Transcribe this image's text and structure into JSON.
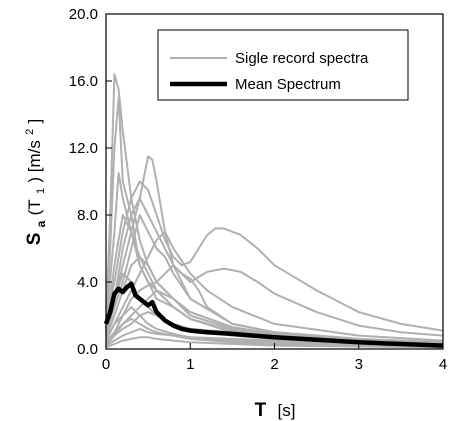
{
  "chart_data": {
    "type": "line",
    "title": "",
    "xlabel": {
      "main": "T",
      "unit": "[s]"
    },
    "ylabel": {
      "s": "S",
      "a": "a",
      "open": "(T",
      "one": "1",
      "close": ") [m/s",
      "sq": "2",
      "end": "]"
    },
    "xlim": [
      0,
      4
    ],
    "ylim": [
      0,
      20
    ],
    "x_ticks": [
      0,
      1,
      2,
      3,
      4
    ],
    "x_tick_labels": [
      "0",
      "1",
      "2",
      "3",
      "4"
    ],
    "y_ticks": [
      0,
      4,
      8,
      12,
      16,
      20
    ],
    "y_tick_labels": [
      "0.0",
      "4.0",
      "8.0",
      "12.0",
      "16.0",
      "20.0"
    ],
    "grid": false,
    "legend_position": "top-right",
    "legend": [
      {
        "label": "Sigle record spectra",
        "color": "#b0b0b0"
      },
      {
        "label": "Mean Spectrum",
        "color": "#000000"
      }
    ],
    "colors": {
      "record": "#b0b0b0",
      "mean": "#000000"
    },
    "series": [
      {
        "group": "record",
        "x": [
          0,
          0.05,
          0.1,
          0.15,
          0.2,
          0.3,
          0.4,
          0.5,
          0.6,
          0.8,
          1.0,
          1.5,
          2.0,
          3.0,
          4.0
        ],
        "y": [
          1.5,
          8.0,
          16.4,
          15.5,
          13.0,
          9.0,
          6.5,
          5.0,
          4.0,
          3.0,
          2.2,
          1.3,
          0.9,
          0.5,
          0.3
        ]
      },
      {
        "group": "record",
        "x": [
          0,
          0.05,
          0.1,
          0.15,
          0.2,
          0.3,
          0.4,
          0.5,
          0.6,
          0.8,
          1.0,
          1.5,
          2.0,
          3.0,
          4.0
        ],
        "y": [
          1.2,
          6.0,
          12.0,
          15.0,
          10.0,
          8.0,
          5.0,
          4.0,
          3.0,
          2.5,
          1.8,
          1.0,
          0.7,
          0.4,
          0.2
        ]
      },
      {
        "group": "record",
        "x": [
          0,
          0.1,
          0.2,
          0.3,
          0.4,
          0.5,
          0.55,
          0.6,
          0.7,
          0.8,
          1.0,
          1.5,
          2.0,
          3.0,
          4.0
        ],
        "y": [
          1.0,
          3.0,
          5.0,
          7.0,
          9.0,
          11.5,
          11.3,
          10.0,
          7.0,
          5.0,
          3.0,
          1.5,
          1.0,
          0.5,
          0.3
        ]
      },
      {
        "group": "record",
        "x": [
          0,
          0.1,
          0.2,
          0.3,
          0.4,
          0.5,
          0.6,
          0.7,
          0.8,
          0.9,
          1.0,
          1.1,
          1.2,
          1.3,
          1.4,
          1.6,
          1.8,
          2.0,
          2.5,
          3.0,
          3.5,
          4.0
        ],
        "y": [
          1.5,
          4.0,
          7.0,
          9.0,
          10.0,
          9.5,
          8.0,
          6.5,
          5.5,
          5.0,
          5.2,
          6.0,
          6.8,
          7.2,
          7.2,
          6.8,
          6.0,
          5.0,
          3.5,
          2.2,
          1.5,
          1.1
        ]
      },
      {
        "group": "record",
        "x": [
          0,
          0.1,
          0.2,
          0.3,
          0.4,
          0.5,
          0.6,
          0.8,
          1.0,
          1.2,
          1.4,
          1.6,
          1.8,
          2.0,
          2.5,
          3.0,
          3.5,
          4.0
        ],
        "y": [
          1.0,
          3.0,
          6.0,
          8.0,
          9.0,
          8.0,
          7.0,
          5.0,
          4.0,
          4.6,
          4.8,
          4.6,
          4.0,
          3.3,
          2.2,
          1.4,
          1.0,
          0.8
        ]
      },
      {
        "group": "record",
        "x": [
          0,
          0.1,
          0.15,
          0.2,
          0.3,
          0.4,
          0.5,
          0.6,
          0.8,
          1.0,
          1.5,
          2.0,
          3.0,
          4.0
        ],
        "y": [
          1.3,
          7.0,
          10.5,
          9.0,
          7.0,
          5.5,
          4.5,
          3.5,
          2.5,
          1.8,
          1.1,
          0.8,
          0.5,
          0.3
        ]
      },
      {
        "group": "record",
        "x": [
          0,
          0.1,
          0.2,
          0.3,
          0.4,
          0.5,
          0.6,
          0.7,
          0.8,
          1.0,
          1.5,
          2.0,
          3.0,
          4.0
        ],
        "y": [
          0.8,
          2.5,
          4.0,
          6.0,
          8.0,
          7.0,
          6.0,
          5.5,
          4.5,
          3.0,
          1.5,
          1.0,
          0.6,
          0.4
        ]
      },
      {
        "group": "record",
        "x": [
          0,
          0.1,
          0.2,
          0.3,
          0.4,
          0.5,
          0.6,
          0.8,
          1.0,
          1.5,
          2.0,
          3.0,
          4.0
        ],
        "y": [
          1.0,
          5.0,
          8.0,
          7.0,
          5.0,
          4.0,
          3.5,
          2.5,
          1.8,
          1.0,
          0.7,
          0.4,
          0.2
        ]
      },
      {
        "group": "record",
        "x": [
          0,
          0.1,
          0.2,
          0.3,
          0.4,
          0.5,
          0.6,
          0.7,
          0.8,
          1.0,
          1.2,
          1.5,
          2.0,
          3.0,
          4.0
        ],
        "y": [
          0.5,
          1.5,
          2.5,
          3.5,
          4.5,
          5.5,
          6.5,
          7.0,
          6.0,
          4.5,
          3.5,
          2.5,
          1.5,
          0.8,
          0.5
        ]
      },
      {
        "group": "record",
        "x": [
          0,
          0.1,
          0.2,
          0.3,
          0.4,
          0.5,
          0.6,
          0.8,
          1.0,
          1.5,
          2.0,
          3.0,
          4.0
        ],
        "y": [
          0.6,
          2.0,
          3.5,
          5.0,
          5.5,
          5.0,
          4.0,
          3.0,
          2.0,
          1.2,
          0.8,
          0.5,
          0.3
        ]
      },
      {
        "group": "record",
        "x": [
          0,
          0.1,
          0.2,
          0.3,
          0.4,
          0.5,
          0.6,
          0.7,
          0.8,
          0.9,
          1.0,
          1.1,
          1.2,
          1.5,
          2.0,
          3.0,
          4.0
        ],
        "y": [
          0.5,
          1.5,
          2.0,
          3.0,
          3.5,
          3.8,
          4.0,
          4.5,
          5.0,
          4.5,
          4.2,
          3.5,
          2.5,
          1.5,
          1.0,
          0.6,
          0.4
        ]
      },
      {
        "group": "record",
        "x": [
          0,
          0.1,
          0.2,
          0.3,
          0.4,
          0.5,
          0.6,
          0.8,
          1.0,
          1.5,
          2.0,
          3.0,
          4.0
        ],
        "y": [
          0.8,
          3.0,
          4.5,
          4.0,
          3.0,
          2.5,
          2.0,
          1.5,
          1.2,
          0.8,
          0.6,
          0.4,
          0.2
        ]
      },
      {
        "group": "record",
        "x": [
          0,
          0.1,
          0.2,
          0.3,
          0.4,
          0.5,
          0.6,
          0.8,
          1.0,
          1.5,
          2.0,
          3.0,
          4.0
        ],
        "y": [
          0.4,
          1.0,
          1.5,
          2.0,
          2.5,
          3.0,
          3.5,
          3.0,
          2.2,
          1.3,
          0.9,
          0.5,
          0.3
        ]
      },
      {
        "group": "record",
        "x": [
          0,
          0.1,
          0.2,
          0.3,
          0.4,
          0.5,
          0.6,
          0.8,
          1.0,
          1.5,
          2.0,
          3.0,
          4.0
        ],
        "y": [
          0.3,
          0.8,
          1.2,
          1.5,
          2.0,
          2.2,
          2.0,
          1.5,
          1.2,
          1.0,
          0.8,
          0.5,
          0.3
        ]
      },
      {
        "group": "record",
        "x": [
          0,
          0.1,
          0.2,
          0.3,
          0.4,
          0.5,
          0.6,
          0.8,
          1.0,
          1.5,
          2.0,
          3.0,
          4.0
        ],
        "y": [
          0.3,
          1.0,
          2.0,
          2.5,
          2.0,
          1.5,
          1.2,
          0.9,
          0.7,
          0.5,
          0.4,
          0.3,
          0.2
        ]
      },
      {
        "group": "record",
        "x": [
          0,
          0.1,
          0.2,
          0.3,
          0.4,
          0.5,
          0.6,
          0.8,
          1.0,
          1.5,
          2.0,
          3.0,
          4.0
        ],
        "y": [
          0.2,
          0.5,
          0.8,
          1.0,
          1.2,
          1.0,
          0.9,
          0.8,
          0.7,
          0.6,
          0.5,
          0.3,
          0.2
        ]
      },
      {
        "group": "record",
        "x": [
          0,
          0.1,
          0.2,
          0.3,
          0.4,
          0.5,
          0.6,
          0.8,
          1.0,
          1.5,
          2.0,
          3.0,
          4.0
        ],
        "y": [
          0.1,
          0.3,
          0.5,
          0.6,
          0.7,
          0.7,
          0.6,
          0.5,
          0.4,
          0.3,
          0.2,
          0.15,
          0.1
        ]
      },
      {
        "group": "record",
        "x": [
          0,
          0.1,
          0.2,
          0.3,
          0.4,
          0.5,
          0.6,
          0.8,
          1.0,
          1.5,
          2.0,
          3.0,
          4.0
        ],
        "y": [
          0.2,
          0.8,
          1.5,
          1.8,
          1.5,
          1.2,
          1.0,
          0.8,
          0.6,
          0.4,
          0.3,
          0.2,
          0.1
        ]
      },
      {
        "group": "mean",
        "x": [
          0,
          0.05,
          0.1,
          0.15,
          0.2,
          0.25,
          0.3,
          0.35,
          0.4,
          0.5,
          0.55,
          0.6,
          0.7,
          0.8,
          0.9,
          1.0,
          1.2,
          1.5,
          2.0,
          2.5,
          3.0,
          3.5,
          4.0
        ],
        "y": [
          1.5,
          2.2,
          3.3,
          3.6,
          3.4,
          3.7,
          3.9,
          3.2,
          3.0,
          2.6,
          2.8,
          2.2,
          1.7,
          1.4,
          1.2,
          1.1,
          1.0,
          0.9,
          0.7,
          0.55,
          0.4,
          0.3,
          0.2
        ]
      }
    ]
  }
}
